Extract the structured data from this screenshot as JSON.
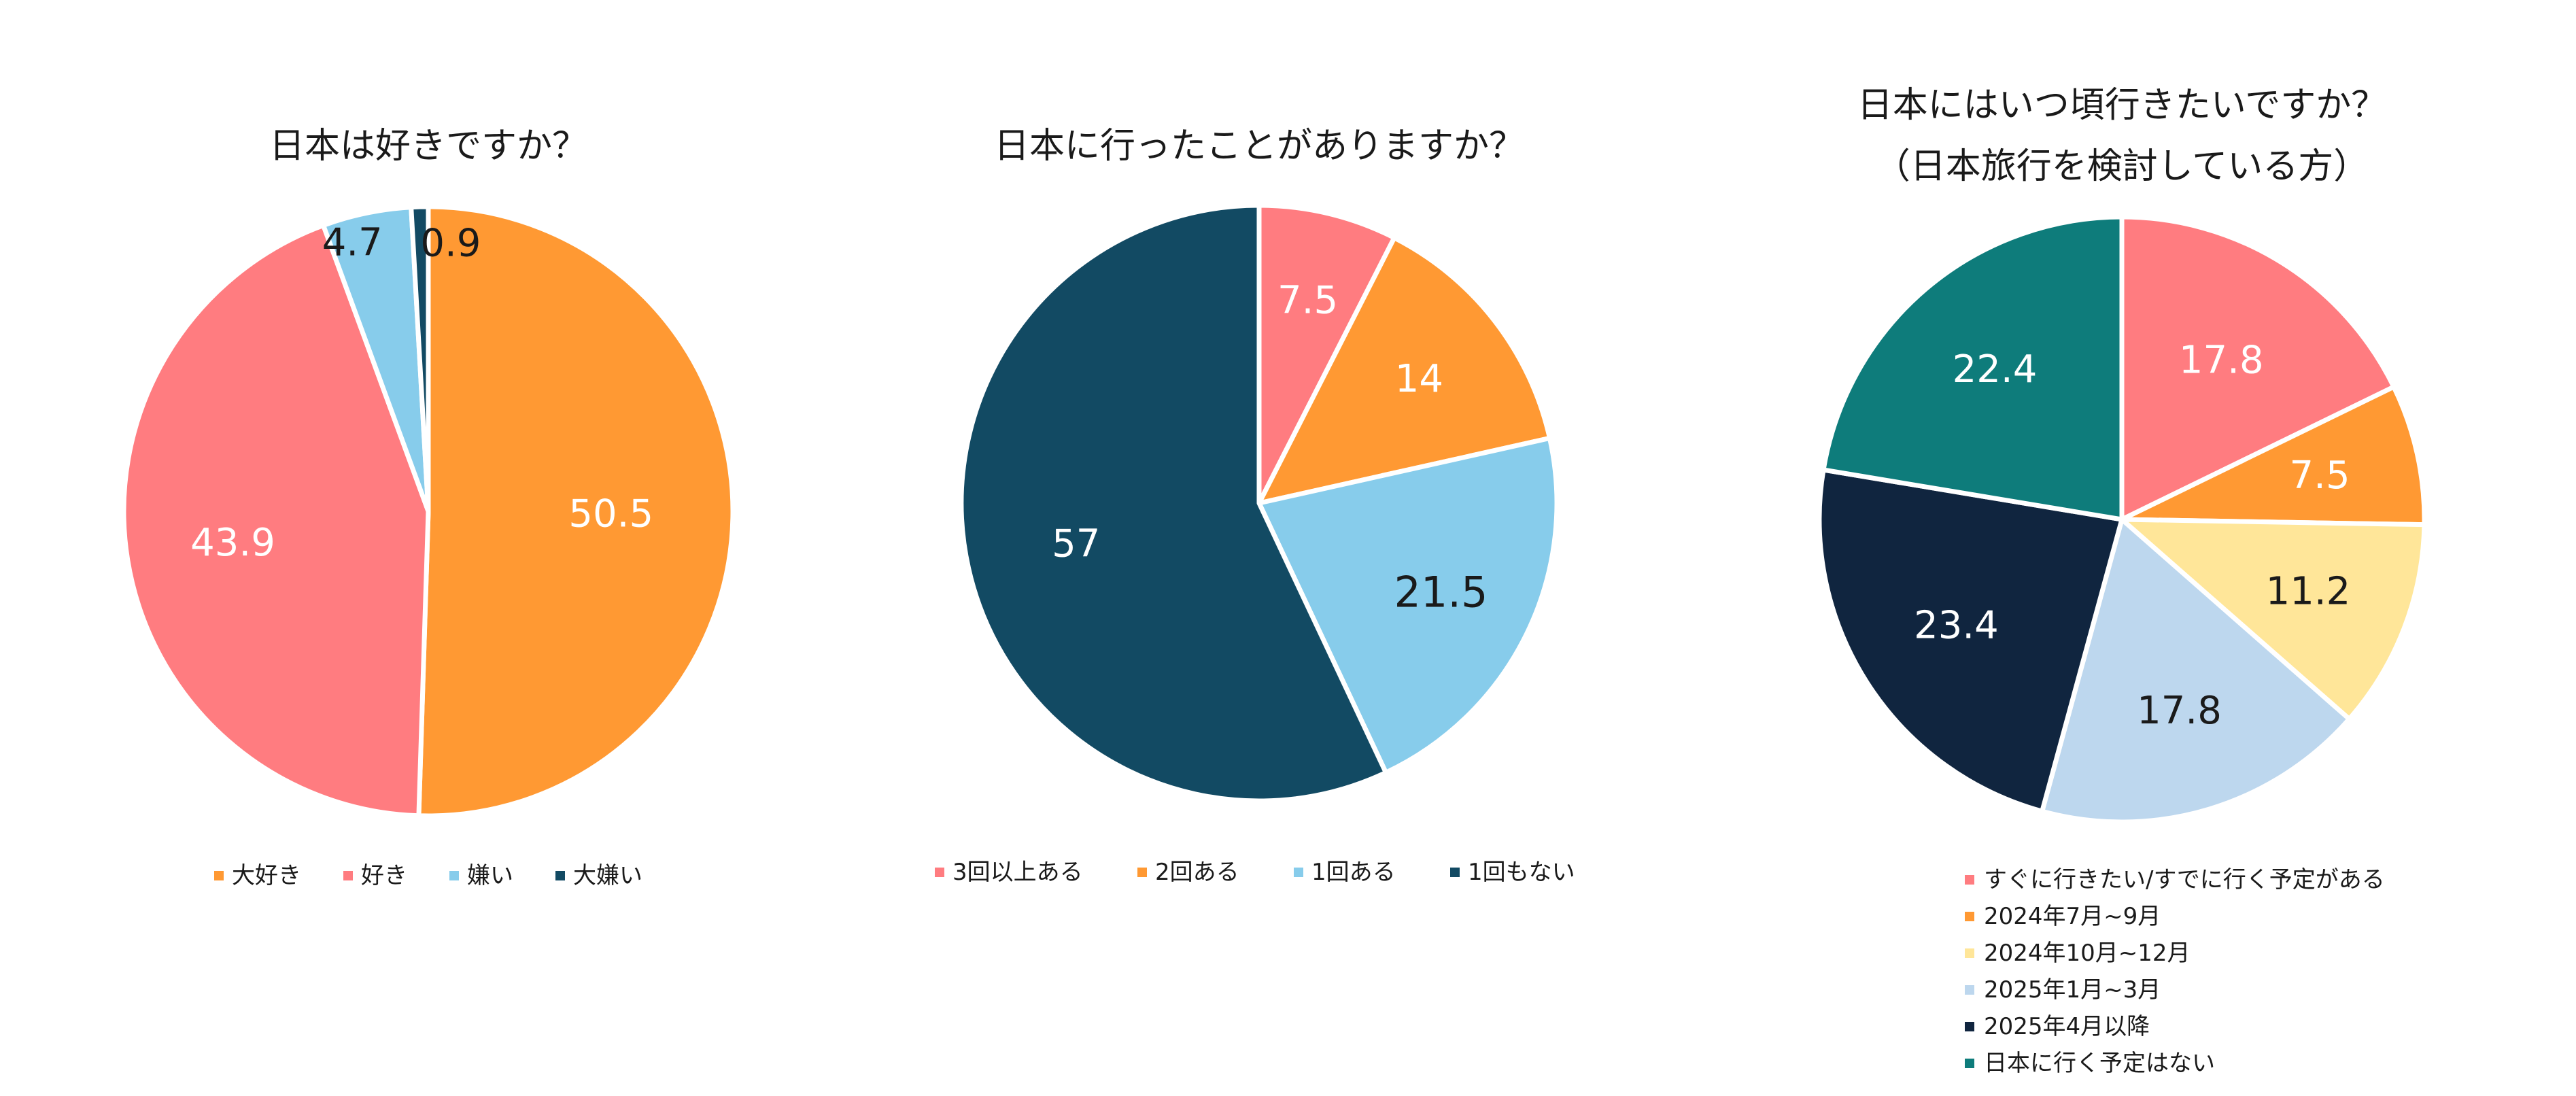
{
  "chart_data": [
    {
      "type": "pie",
      "title": "日本は好きですか？",
      "categories": [
        "大好き",
        "好き",
        "嫌い",
        "大嫌い"
      ],
      "values": [
        50.5,
        43.9,
        4.7,
        0.9
      ],
      "data_labels": [
        "50.5",
        "43.9",
        "4.7",
        "0.9"
      ],
      "colors": [
        "#FF9933",
        "#FF7C80",
        "#87CCEB",
        "#124A63"
      ],
      "label_colors": [
        "#FFFFFF",
        "#FFFFFF",
        "#1A1A1A",
        "#1A1A1A"
      ],
      "legend_position": "bottom"
    },
    {
      "type": "pie",
      "title": "日本に行ったことがありますか？",
      "categories": [
        "3回以上ある",
        "2回ある",
        "1回ある",
        "1回もない"
      ],
      "values": [
        7.5,
        14,
        21.5,
        57
      ],
      "data_labels": [
        "7.5",
        "14",
        "21.5",
        "57"
      ],
      "colors": [
        "#FF7C80",
        "#FF9933",
        "#87CCEB",
        "#124A63"
      ],
      "label_colors": [
        "#FFFFFF",
        "#FFFFFF",
        "#1A1A1A",
        "#FFFFFF"
      ],
      "legend_position": "bottom"
    },
    {
      "type": "pie",
      "title": "日本にはいつ頃行きたいですか？",
      "subtitle": "（日本旅行を検討している方）",
      "categories": [
        "すぐに行きたい/すでに行く予定がある",
        "2024年7月~9月",
        "2024年10月~12月",
        "2025年1月~3月",
        "2025年4月以降",
        "日本に行く予定はない"
      ],
      "values": [
        17.8,
        7.5,
        11.2,
        17.8,
        23.4,
        22.4
      ],
      "data_labels": [
        "17.8",
        "7.5",
        "11.2",
        "17.8",
        "23.4",
        "22.4"
      ],
      "colors": [
        "#FF7C80",
        "#FF9933",
        "#FFE699",
        "#BDD7EE",
        "#10253F",
        "#0E7C7B"
      ],
      "label_colors": [
        "#FFFFFF",
        "#FFFFFF",
        "#1A1A1A",
        "#1A1A1A",
        "#FFFFFF",
        "#FFFFFF"
      ],
      "legend_position": "bottom"
    }
  ]
}
